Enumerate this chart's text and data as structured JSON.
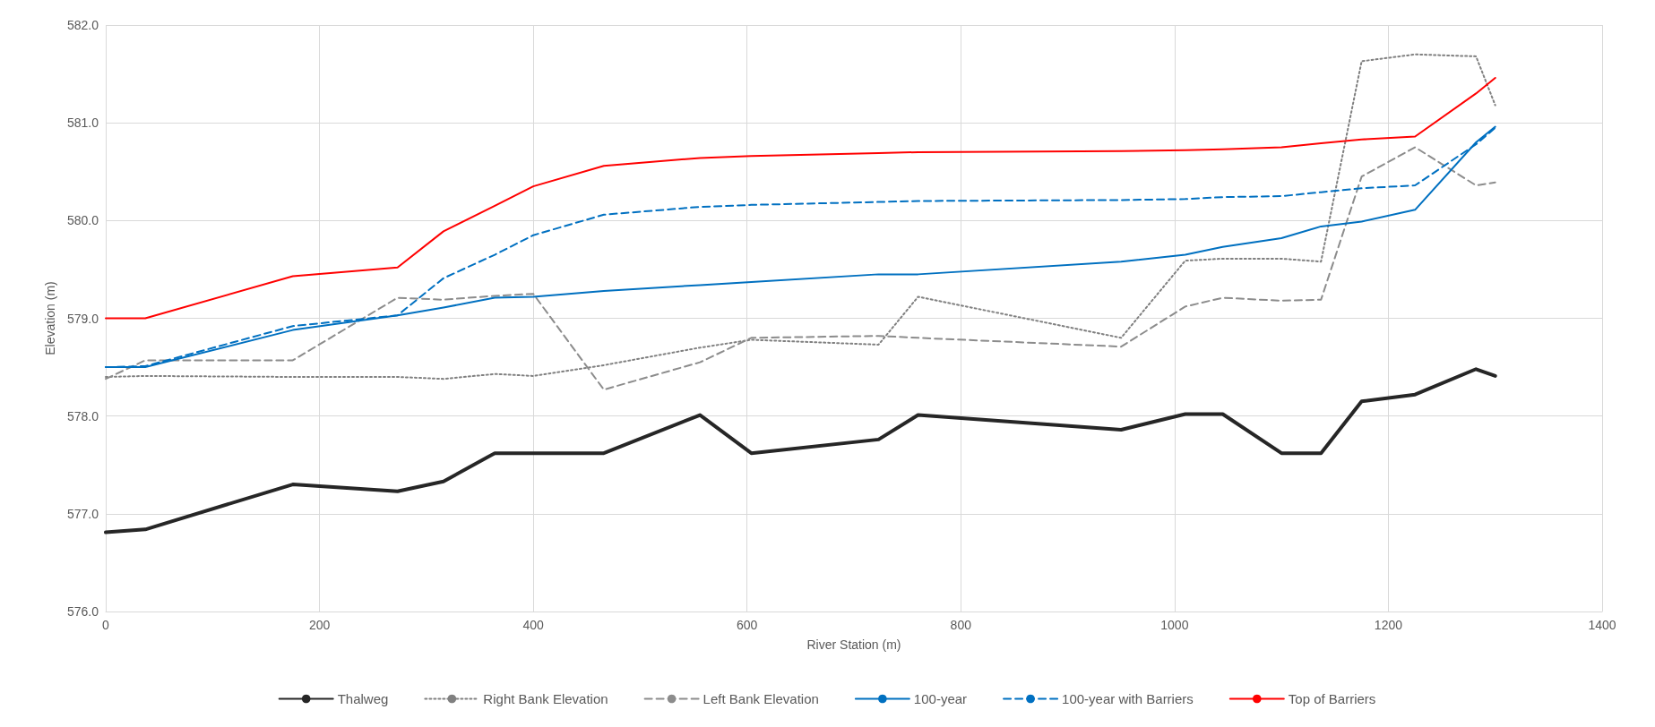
{
  "chart_data": {
    "type": "line",
    "xlabel": "River Station (m)",
    "ylabel": "Elevation (m)",
    "x": [
      0,
      37,
      175,
      273,
      316,
      364,
      400,
      466,
      556,
      604,
      723,
      760,
      950,
      1010,
      1045,
      1100,
      1137,
      1175,
      1225,
      1282,
      1300
    ],
    "xlim": [
      0,
      1400
    ],
    "xticks": [
      0,
      200,
      400,
      600,
      800,
      1000,
      1200,
      1400
    ],
    "ylim": [
      576,
      582
    ],
    "yticks": [
      {
        "value": 576,
        "label": "576.0"
      },
      {
        "value": 577,
        "label": "577.0"
      },
      {
        "value": 578,
        "label": "578.0"
      },
      {
        "value": 579,
        "label": "579.0"
      },
      {
        "value": 580,
        "label": "580.0"
      },
      {
        "value": 581,
        "label": "581.0"
      },
      {
        "value": 582,
        "label": "582.0"
      }
    ],
    "grid": true,
    "legend": "bottom",
    "marker": "none",
    "series": [
      {
        "name": "Thalweg",
        "color": "#262626",
        "line_style": "solid",
        "values": [
          576.81,
          576.84,
          577.3,
          577.23,
          577.33,
          577.62,
          577.62,
          577.62,
          578.01,
          577.62,
          577.76,
          578.01,
          577.86,
          578.02,
          578.02,
          577.62,
          577.62,
          578.15,
          578.22,
          578.48,
          578.41
        ]
      },
      {
        "name": "Right Bank Elevation",
        "color": "#808080",
        "line_style": "dotted",
        "values": [
          578.4,
          578.41,
          578.4,
          578.4,
          578.38,
          578.43,
          578.41,
          578.52,
          578.7,
          578.78,
          578.73,
          579.22,
          578.8,
          579.59,
          579.61,
          579.61,
          579.58,
          581.63,
          581.7,
          581.68,
          581.18
        ]
      },
      {
        "name": "Left Bank Elevation",
        "color": "#8c8c8c",
        "line_style": "dashed",
        "values": [
          578.38,
          578.57,
          578.57,
          579.21,
          579.19,
          579.23,
          579.25,
          578.27,
          578.55,
          578.8,
          578.82,
          578.8,
          578.71,
          579.12,
          579.21,
          579.18,
          579.19,
          580.45,
          580.75,
          580.36,
          580.39
        ]
      },
      {
        "name": "100-year",
        "color": "#0070c0",
        "line_style": "solid",
        "values": [
          578.5,
          578.5,
          578.88,
          579.03,
          579.11,
          579.21,
          579.22,
          579.28,
          579.34,
          579.37,
          579.45,
          579.45,
          579.58,
          579.65,
          579.73,
          579.82,
          579.94,
          579.99,
          580.11,
          580.8,
          580.96
        ]
      },
      {
        "name": "100-year with Barriers",
        "color": "#0070c1",
        "line_style": "dashed",
        "values": [
          578.5,
          578.51,
          578.92,
          579.03,
          579.41,
          579.65,
          579.85,
          580.06,
          580.14,
          580.16,
          580.19,
          580.2,
          580.21,
          580.22,
          580.24,
          580.25,
          580.29,
          580.33,
          580.36,
          580.78,
          580.95
        ]
      },
      {
        "name": "Top of Barriers",
        "color": "#ff0000",
        "line_style": "solid",
        "values": [
          579.0,
          579.0,
          579.43,
          579.52,
          579.89,
          580.15,
          580.35,
          580.56,
          580.64,
          580.66,
          580.69,
          580.7,
          580.71,
          580.72,
          580.73,
          580.75,
          580.79,
          580.83,
          580.86,
          581.3,
          581.46
        ]
      }
    ]
  }
}
